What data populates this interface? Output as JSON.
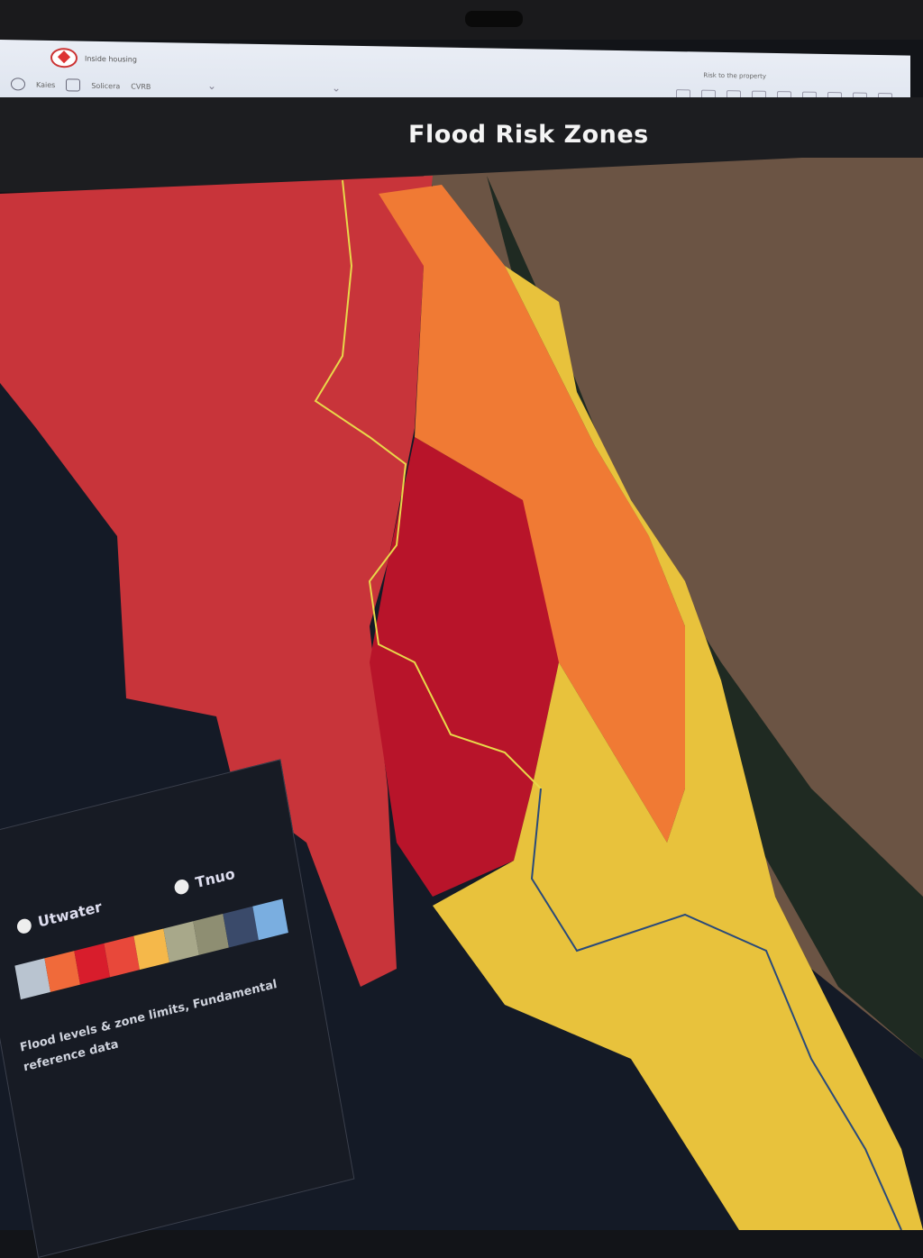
{
  "app": {
    "header_text": "Inside housing",
    "right_header_text": "Risk to the property"
  },
  "toolbar": {
    "items": [
      {
        "label": "Kaies",
        "icon": "globe-icon"
      },
      {
        "label": "Solicera",
        "icon": "layers-icon"
      },
      {
        "label": "CVRB"
      }
    ],
    "right_tools": [
      "tool",
      "tool",
      "tool",
      "tool",
      "tool",
      "tool",
      "tool",
      "tool",
      "tool"
    ]
  },
  "map": {
    "title": "Flood Risk Zones",
    "zone_colors": {
      "very_high": "#b8142a",
      "high": "#c8343a",
      "medium": "#f07a34",
      "low": "#e8c23c",
      "terrain": "#6b5444",
      "water": "#141a26"
    }
  },
  "legend": {
    "heading_left": "Utwater",
    "heading_right": "Tnuo",
    "swatches": [
      "#b9c4d0",
      "#f06a3a",
      "#d81d2c",
      "#e8483a",
      "#f5b84a",
      "#a8a88a",
      "#8e8e72",
      "#3a4a6a",
      "#7aaee0"
    ],
    "description": "Flood levels & zone limits, Fundamental reference data"
  }
}
